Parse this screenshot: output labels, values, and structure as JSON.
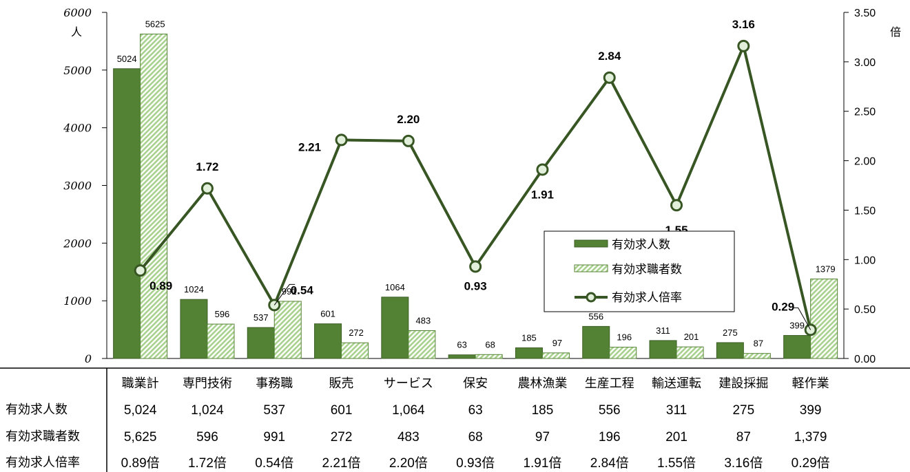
{
  "chart_data": {
    "type": "bar",
    "categories": [
      "職業計",
      "専門技術",
      "事務職",
      "販売",
      "サービス",
      "保安",
      "農林漁業",
      "生産工程",
      "輸送運転",
      "建設採掘",
      "軽作業"
    ],
    "series": [
      {
        "name": "有効求人数",
        "type": "bar",
        "axis": "left",
        "color": "#548235",
        "values": [
          5024,
          1024,
          537,
          601,
          1064,
          63,
          185,
          556,
          311,
          275,
          399
        ],
        "labels": [
          "5024",
          "1024",
          "537",
          "601",
          "1064",
          "63",
          "185",
          "556",
          "311",
          "275",
          "399"
        ]
      },
      {
        "name": "有効求職者数",
        "type": "bar",
        "axis": "left",
        "color": "#a9d18e",
        "values": [
          5625,
          596,
          991,
          272,
          483,
          68,
          97,
          196,
          201,
          87,
          1379
        ],
        "labels": [
          "5625",
          "596",
          "991",
          "272",
          "483",
          "68",
          "97",
          "196",
          "201",
          "87",
          "1379"
        ]
      },
      {
        "name": "有効求人倍率",
        "type": "line",
        "axis": "right",
        "color": "#375623",
        "values": [
          0.89,
          1.72,
          0.54,
          2.21,
          2.2,
          0.93,
          1.91,
          2.84,
          1.55,
          3.16,
          0.29
        ],
        "labels": [
          "0.89",
          "1.72",
          "0.54",
          "2.21",
          "2.20",
          "0.93",
          "1.91",
          "2.84",
          "1.55",
          "3.16",
          "0.29"
        ]
      }
    ],
    "y_left": {
      "ylim": [
        0,
        6000
      ],
      "ticks": [
        "0",
        "1000",
        "2000",
        "3000",
        "4000",
        "5000",
        "6000"
      ],
      "unit": "人"
    },
    "y_right": {
      "ylim": [
        0,
        3.5
      ],
      "ticks": [
        "0.00",
        "0.50",
        "1.00",
        "1.50",
        "2.00",
        "2.50",
        "3.00",
        "3.50"
      ],
      "unit": "倍"
    },
    "legend_position": "center-right",
    "grid": false
  },
  "table": {
    "rows": [
      {
        "title": "有効求人数",
        "cells": [
          "5,024",
          "1,024",
          "537",
          "601",
          "1,064",
          "63",
          "185",
          "556",
          "311",
          "275",
          "399"
        ]
      },
      {
        "title": "有効求職者数",
        "cells": [
          "5,625",
          "596",
          "991",
          "272",
          "483",
          "68",
          "97",
          "196",
          "201",
          "87",
          "1,379"
        ]
      },
      {
        "title": "有効求人倍率",
        "cells": [
          "0.89倍",
          "1.72倍",
          "0.54倍",
          "2.21倍",
          "2.20倍",
          "0.93倍",
          "1.91倍",
          "2.84倍",
          "1.55倍",
          "3.16倍",
          "0.29倍"
        ]
      }
    ]
  }
}
